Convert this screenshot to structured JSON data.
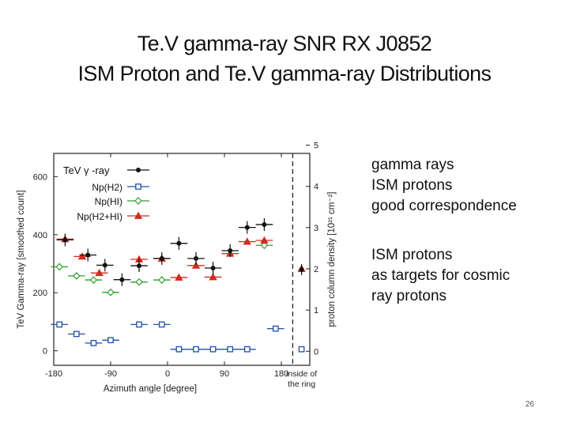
{
  "slide": {
    "title_line1": "Te.V gamma-ray SNR RX J0852",
    "title_line2": "ISM Proton and Te.V gamma-ray Distributions",
    "notes": [
      "gamma rays",
      "ISM protons",
      "good correspondence"
    ],
    "notes2": [
      "ISM protons",
      "as targets for cosmic",
      "ray protons"
    ],
    "page_number": "26"
  },
  "colors": {
    "gamma": "#111111",
    "h2": "#1f4fa8",
    "hi": "#2e9e2e",
    "h2hi": "#d42a1f"
  },
  "chart_data": {
    "type": "scatter",
    "xlabel": "Azimuth angle [degree]",
    "ylabel_left": "TeV Gamma-ray [smoothed count]",
    "ylabel_right": "proton column density [10²¹ cm⁻²]",
    "xlim": [
      -180,
      225
    ],
    "ylim_left": [
      -50,
      680
    ],
    "ylim_right": [
      -0.34,
      4.8
    ],
    "x_ticks": [
      -180,
      -90,
      0,
      90,
      180
    ],
    "x_tick_labels": [
      "-180",
      "-90",
      "0",
      "90",
      "180"
    ],
    "y_ticks_left": [
      0,
      200,
      400,
      600
    ],
    "y_tick_labels_left": [
      "0",
      "200",
      "400",
      "600"
    ],
    "y_ticks_right": [
      0,
      1,
      2,
      3,
      4,
      5
    ],
    "y_tick_labels_right": [
      "0",
      "1",
      "2",
      "3",
      "4",
      "5"
    ],
    "divider_x": 198,
    "inside_label": [
      "inside of",
      "the ring"
    ],
    "inside_x": 212,
    "series": [
      {
        "name": "TeV γ -ray",
        "axis": "left",
        "marker": "dot",
        "x": [
          -162,
          -126,
          -99,
          -72,
          -45,
          -9,
          18,
          45,
          72,
          99,
          126,
          153
        ],
        "values": [
          382,
          330,
          295,
          245,
          293,
          318,
          370,
          318,
          285,
          345,
          425,
          435
        ],
        "inside_value": 280
      },
      {
        "name": "Np(H2)",
        "axis": "right",
        "marker": "square",
        "x": [
          -171,
          -144,
          -117,
          -90,
          -45,
          -9,
          18,
          45,
          72,
          99,
          126,
          171
        ],
        "values": [
          0.65,
          0.42,
          0.2,
          0.27,
          0.65,
          0.65,
          0.05,
          0.05,
          0.05,
          0.05,
          0.05,
          0.55
        ],
        "inside_value": 0.05
      },
      {
        "name": "Np(HI)",
        "axis": "right",
        "marker": "diamond",
        "x": [
          -171,
          -144,
          -117,
          -90,
          -45,
          -9,
          153
        ],
        "values": [
          2.05,
          1.83,
          1.73,
          1.43,
          1.68,
          1.73,
          2.57
        ]
      },
      {
        "name": "Np(H2+HI)",
        "axis": "right",
        "marker": "triangle",
        "x": [
          -162,
          -135,
          -108,
          -45,
          -9,
          18,
          45,
          72,
          99,
          126,
          153
        ],
        "values": [
          2.72,
          2.3,
          1.9,
          2.23,
          2.25,
          1.79,
          2.08,
          1.8,
          2.37,
          2.66,
          2.69
        ],
        "inside_value": 2.0
      }
    ]
  }
}
